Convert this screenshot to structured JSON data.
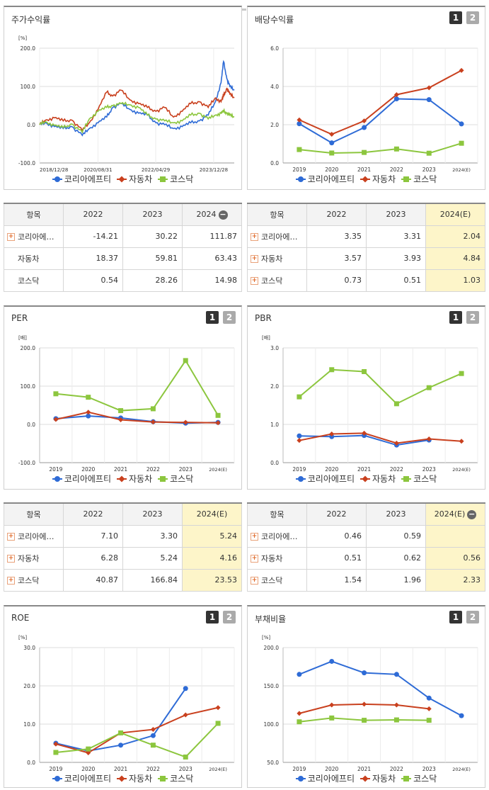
{
  "colors": {
    "korea": "#2e6bd6",
    "auto": "#c9401e",
    "kosdaq": "#8cc63e"
  },
  "legend": [
    "코리아에프티",
    "자동차",
    "코스닥"
  ],
  "panels": {
    "price": {
      "title": "주가수익률",
      "unit": "[%]"
    },
    "div": {
      "title": "배당수익률",
      "unit": ""
    },
    "per": {
      "title": "PER",
      "unit": "[배]"
    },
    "pbr": {
      "title": "PBR",
      "unit": "[배]"
    },
    "roe": {
      "title": "ROE",
      "unit": "[%]"
    },
    "debt": {
      "title": "부채비율",
      "unit": "[%]"
    }
  },
  "tabs": [
    "1",
    "2"
  ],
  "tables": {
    "price": {
      "head": [
        "항목",
        "2022",
        "2023",
        "2024"
      ],
      "rows": [
        {
          "name": "코리아에…",
          "plus": true,
          "vals": [
            "-14.21",
            "30.22",
            "111.87"
          ]
        },
        {
          "name": "자동차",
          "plus": false,
          "vals": [
            "18.37",
            "59.81",
            "63.43"
          ]
        },
        {
          "name": "코스닥",
          "plus": false,
          "vals": [
            "0.54",
            "28.26",
            "14.98"
          ]
        }
      ]
    },
    "div": {
      "head": [
        "항목",
        "2022",
        "2023",
        "2024(E)"
      ],
      "rows": [
        {
          "name": "코리아에…",
          "plus": true,
          "vals": [
            "3.35",
            "3.31",
            "2.04"
          ]
        },
        {
          "name": "자동차",
          "plus": true,
          "vals": [
            "3.57",
            "3.93",
            "4.84"
          ]
        },
        {
          "name": "코스닥",
          "plus": true,
          "vals": [
            "0.73",
            "0.51",
            "1.03"
          ]
        }
      ]
    },
    "per": {
      "head": [
        "항목",
        "2022",
        "2023",
        "2024(E)"
      ],
      "rows": [
        {
          "name": "코리아에…",
          "plus": true,
          "vals": [
            "7.10",
            "3.30",
            "5.24"
          ]
        },
        {
          "name": "자동차",
          "plus": true,
          "vals": [
            "6.28",
            "5.24",
            "4.16"
          ]
        },
        {
          "name": "코스닥",
          "plus": true,
          "vals": [
            "40.87",
            "166.84",
            "23.53"
          ]
        }
      ]
    },
    "pbr": {
      "head": [
        "항목",
        "2022",
        "2023",
        "2024(E)"
      ],
      "rows": [
        {
          "name": "코리아에…",
          "plus": true,
          "vals": [
            "0.46",
            "0.59",
            ""
          ]
        },
        {
          "name": "자동차",
          "plus": true,
          "vals": [
            "0.51",
            "0.62",
            "0.56"
          ]
        },
        {
          "name": "코스닥",
          "plus": true,
          "vals": [
            "1.54",
            "1.96",
            "2.33"
          ]
        }
      ]
    }
  },
  "chart_data": [
    {
      "id": "price",
      "type": "line",
      "title": "주가수익률",
      "ylabel": "[%]",
      "ylim": [
        -100,
        200
      ],
      "yticks": [
        "-100.0",
        "0.0",
        "100.0",
        "200.0"
      ],
      "xticks": [
        "2018/12/28",
        "2020/08/31",
        "2022/04/29",
        "2023/12/28"
      ],
      "x_start": "2018-12-28",
      "x_end": "2024-07-31",
      "series": [
        {
          "name": "코리아에프티",
          "x": [
            "2018-12-28",
            "2019-03-01",
            "2019-06-01",
            "2019-09-01",
            "2019-12-01",
            "2020-03-20",
            "2020-06-01",
            "2020-09-01",
            "2020-12-01",
            "2021-02-01",
            "2021-05-01",
            "2021-08-01",
            "2021-11-01",
            "2022-02-01",
            "2022-05-01",
            "2022-08-01",
            "2022-11-01",
            "2023-02-01",
            "2023-05-01",
            "2023-08-01",
            "2023-11-01",
            "2024-01-15",
            "2024-03-15",
            "2024-04-10",
            "2024-05-15",
            "2024-06-15",
            "2024-07-31"
          ],
          "values": [
            0,
            5,
            -5,
            -10,
            -5,
            -28,
            -10,
            5,
            20,
            45,
            55,
            40,
            30,
            25,
            5,
            0,
            -10,
            -5,
            5,
            10,
            25,
            60,
            110,
            165,
            120,
            100,
            90
          ]
        },
        {
          "name": "자동차",
          "x": [
            "2018-12-28",
            "2019-03-01",
            "2019-06-01",
            "2019-09-01",
            "2019-12-01",
            "2020-03-20",
            "2020-06-01",
            "2020-09-01",
            "2020-12-01",
            "2021-02-01",
            "2021-05-01",
            "2021-08-01",
            "2021-11-01",
            "2022-02-01",
            "2022-05-01",
            "2022-08-01",
            "2022-11-01",
            "2023-02-01",
            "2023-05-01",
            "2023-08-01",
            "2023-11-01",
            "2024-01-15",
            "2024-03-15",
            "2024-04-10",
            "2024-05-15",
            "2024-06-15",
            "2024-07-31"
          ],
          "values": [
            0,
            12,
            18,
            10,
            12,
            -15,
            5,
            40,
            85,
            75,
            90,
            65,
            55,
            45,
            35,
            45,
            20,
            35,
            55,
            60,
            45,
            70,
            60,
            75,
            95,
            80,
            70
          ]
        },
        {
          "name": "코스닥",
          "x": [
            "2018-12-28",
            "2019-03-01",
            "2019-06-01",
            "2019-09-01",
            "2019-12-01",
            "2020-03-20",
            "2020-06-01",
            "2020-09-01",
            "2020-12-01",
            "2021-02-01",
            "2021-05-01",
            "2021-08-01",
            "2021-11-01",
            "2022-02-01",
            "2022-05-01",
            "2022-08-01",
            "2022-11-01",
            "2023-02-01",
            "2023-05-01",
            "2023-08-01",
            "2023-11-01",
            "2024-01-15",
            "2024-03-15",
            "2024-04-10",
            "2024-05-15",
            "2024-06-15",
            "2024-07-31"
          ],
          "values": [
            0,
            8,
            -2,
            -8,
            2,
            -20,
            15,
            35,
            45,
            50,
            55,
            52,
            45,
            25,
            15,
            10,
            5,
            10,
            25,
            30,
            15,
            25,
            30,
            35,
            30,
            25,
            20
          ]
        }
      ]
    },
    {
      "id": "div",
      "type": "line",
      "title": "배당수익률",
      "categories": [
        "2019",
        "2020",
        "2021",
        "2022",
        "2023",
        "2024(E)"
      ],
      "ylim": [
        0,
        6
      ],
      "yticks": [
        "0.0",
        "2.0",
        "4.0",
        "6.0"
      ],
      "series": [
        {
          "name": "코리아에프티",
          "values": [
            2.05,
            1.05,
            1.85,
            3.35,
            3.31,
            2.04
          ]
        },
        {
          "name": "자동차",
          "values": [
            2.25,
            1.5,
            2.2,
            3.57,
            3.93,
            4.84
          ]
        },
        {
          "name": "코스닥",
          "values": [
            0.7,
            0.52,
            0.55,
            0.73,
            0.51,
            1.03
          ]
        }
      ]
    },
    {
      "id": "per",
      "type": "line",
      "title": "PER",
      "ylabel": "[배]",
      "categories": [
        "2019",
        "2020",
        "2021",
        "2022",
        "2023",
        "2024(E)"
      ],
      "ylim": [
        -100,
        200
      ],
      "yticks": [
        "-100.0",
        "0.0",
        "100.0",
        "200.0"
      ],
      "series": [
        {
          "name": "코리아에프티",
          "values": [
            15,
            22,
            17,
            7.1,
            3.3,
            5.24
          ]
        },
        {
          "name": "자동차",
          "values": [
            13,
            32,
            12,
            6.28,
            5.24,
            4.16
          ]
        },
        {
          "name": "코스닥",
          "values": [
            80,
            71,
            36,
            40.87,
            166.84,
            23.53
          ]
        }
      ]
    },
    {
      "id": "pbr",
      "type": "line",
      "title": "PBR",
      "ylabel": "[배]",
      "categories": [
        "2019",
        "2020",
        "2021",
        "2022",
        "2023",
        "2024(E)"
      ],
      "ylim": [
        0,
        3
      ],
      "yticks": [
        "0.0",
        "1.0",
        "2.0",
        "3.0"
      ],
      "series": [
        {
          "name": "코리아에프티",
          "values": [
            0.7,
            0.68,
            0.71,
            0.46,
            0.59,
            null
          ]
        },
        {
          "name": "자동차",
          "values": [
            0.58,
            0.75,
            0.77,
            0.51,
            0.62,
            0.56
          ]
        },
        {
          "name": "코스닥",
          "values": [
            1.72,
            2.43,
            2.38,
            1.54,
            1.96,
            2.33
          ]
        }
      ]
    },
    {
      "id": "roe",
      "type": "line",
      "title": "ROE",
      "ylabel": "[%]",
      "categories": [
        "2019",
        "2020",
        "2021",
        "2022",
        "2023",
        "2024(E)"
      ],
      "ylim": [
        0,
        30
      ],
      "yticks": [
        "0.0",
        "10.0",
        "20.0",
        "30.0"
      ],
      "series": [
        {
          "name": "코리아에프티",
          "values": [
            5.0,
            3.0,
            4.5,
            7.0,
            19.3,
            null
          ]
        },
        {
          "name": "자동차",
          "values": [
            4.8,
            2.5,
            7.7,
            8.6,
            12.4,
            14.3
          ]
        },
        {
          "name": "코스닥",
          "values": [
            2.6,
            3.5,
            7.7,
            4.5,
            1.4,
            10.2
          ]
        }
      ]
    },
    {
      "id": "debt",
      "type": "line",
      "title": "부채비율",
      "ylabel": "[%]",
      "categories": [
        "2019",
        "2020",
        "2021",
        "2022",
        "2023",
        "2024(E)"
      ],
      "ylim": [
        50,
        200
      ],
      "yticks": [
        "50.0",
        "100.0",
        "150.0",
        "200.0"
      ],
      "series": [
        {
          "name": "코리아에프티",
          "values": [
            165,
            182,
            167,
            165,
            134,
            111
          ]
        },
        {
          "name": "자동차",
          "values": [
            114,
            125,
            126,
            125,
            120,
            null
          ]
        },
        {
          "name": "코스닥",
          "values": [
            103,
            108,
            105,
            105.5,
            105,
            null
          ]
        }
      ]
    }
  ]
}
